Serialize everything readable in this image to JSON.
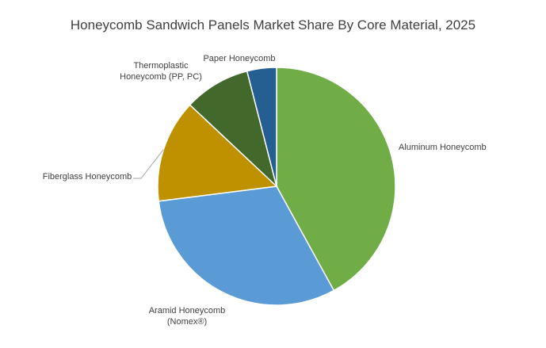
{
  "chart_data": {
    "type": "pie",
    "title": "Honeycomb Sandwich Panels Market Share By Core Material, 2025",
    "start": "top",
    "direction": "clockwise",
    "slices": [
      {
        "label": "Aluminum Honeycomb",
        "label_lines": [
          "Aluminum Honeycomb"
        ],
        "value": 42,
        "color": "#70AD47"
      },
      {
        "label": "Aramid Honeycomb (Nomex®)",
        "label_lines": [
          "Aramid Honeycomb",
          "(Nomex®)"
        ],
        "value": 31,
        "color": "#5B9BD5"
      },
      {
        "label": "Fiberglass Honeycomb",
        "label_lines": [
          "Fiberglass Honeycomb"
        ],
        "value": 14,
        "color": "#BF9000"
      },
      {
        "label": "Thermoplastic Honeycomb (PP, PC)",
        "label_lines": [
          "Thermoplastic",
          "Honeycomb (PP, PC)"
        ],
        "value": 9,
        "color": "#43682B"
      },
      {
        "label": "Paper Honeycomb",
        "label_lines": [
          "Paper Honeycomb"
        ],
        "value": 4,
        "color": "#255E91"
      }
    ]
  }
}
